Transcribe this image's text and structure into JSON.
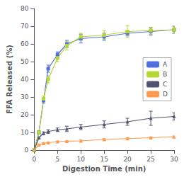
{
  "chart_data": {
    "type": "line",
    "x": [
      0,
      1,
      2,
      3,
      5,
      7,
      10,
      15,
      20,
      25,
      30
    ],
    "series": [
      {
        "name": "A",
        "values": [
          0,
          10,
          28,
          46,
          54,
          60,
          63,
          64,
          66,
          67,
          68
        ],
        "errors": [
          0,
          0.8,
          1.5,
          2.0,
          1.5,
          2.0,
          2.5,
          2.0,
          1.5,
          2.0,
          2.0
        ],
        "marker": "square"
      },
      {
        "name": "B",
        "values": [
          0,
          10,
          29,
          40,
          52,
          59,
          64,
          65,
          67,
          67.5,
          68
        ],
        "errors": [
          0,
          0.8,
          1.5,
          2.0,
          2.0,
          2.5,
          2.0,
          2.5,
          3.5,
          2.0,
          2.0
        ],
        "marker": "square"
      },
      {
        "name": "C",
        "values": [
          0,
          7,
          9.5,
          10.5,
          11.5,
          12,
          13,
          14.5,
          16,
          18,
          19
        ],
        "errors": [
          0,
          0.5,
          0.8,
          1.0,
          1.0,
          1.5,
          1.5,
          2.0,
          2.0,
          4.0,
          2.0
        ],
        "marker": "triangle"
      },
      {
        "name": "D",
        "values": [
          0,
          3.0,
          3.8,
          4.2,
          4.8,
          5.0,
          5.2,
          6.0,
          6.5,
          7.0,
          7.5
        ],
        "errors": [
          0,
          0.3,
          0.3,
          0.3,
          0.3,
          0.3,
          0.5,
          0.5,
          0.5,
          0.5,
          0.5
        ],
        "marker": "triangle"
      }
    ],
    "xlabel": "Digestion Time (min)",
    "ylabel": "FFA Released (%)",
    "xlim": [
      0,
      30
    ],
    "ylim": [
      0,
      80
    ],
    "xticks": [
      0,
      5,
      10,
      15,
      20,
      25,
      30
    ],
    "yticks": [
      0,
      10,
      20,
      30,
      40,
      50,
      60,
      70,
      80
    ],
    "grid": false,
    "legend": "right"
  }
}
